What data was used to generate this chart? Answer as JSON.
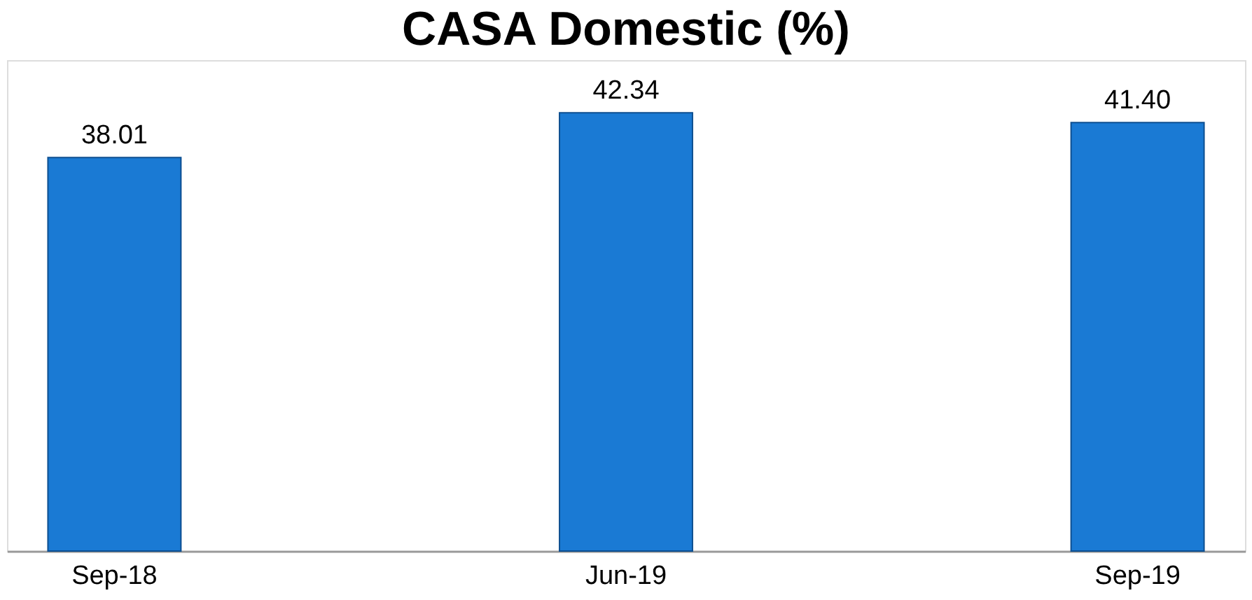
{
  "chart_data": {
    "type": "bar",
    "title": "CASA Domestic (%)",
    "categories": [
      "Sep-18",
      "Jun-19",
      "Sep-19"
    ],
    "values": [
      38.01,
      42.34,
      41.4
    ],
    "value_labels": [
      "38.01",
      "42.34",
      "41.40"
    ],
    "color": "#1a7ad4",
    "tick_labels": "x",
    "grid": false
  }
}
